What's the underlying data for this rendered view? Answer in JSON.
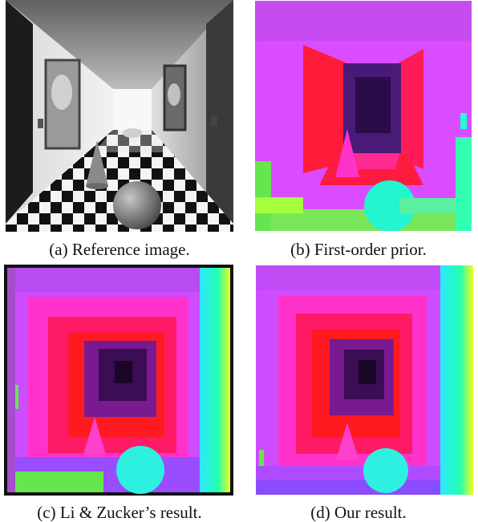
{
  "figure": {
    "panels": [
      {
        "id": "a",
        "caption": "(a) Reference image."
      },
      {
        "id": "b",
        "caption": "(b) First-order prior."
      },
      {
        "id": "c",
        "caption": "(c) Li & Zucker’s result."
      },
      {
        "id": "d",
        "caption": "(d) Our result."
      }
    ]
  }
}
